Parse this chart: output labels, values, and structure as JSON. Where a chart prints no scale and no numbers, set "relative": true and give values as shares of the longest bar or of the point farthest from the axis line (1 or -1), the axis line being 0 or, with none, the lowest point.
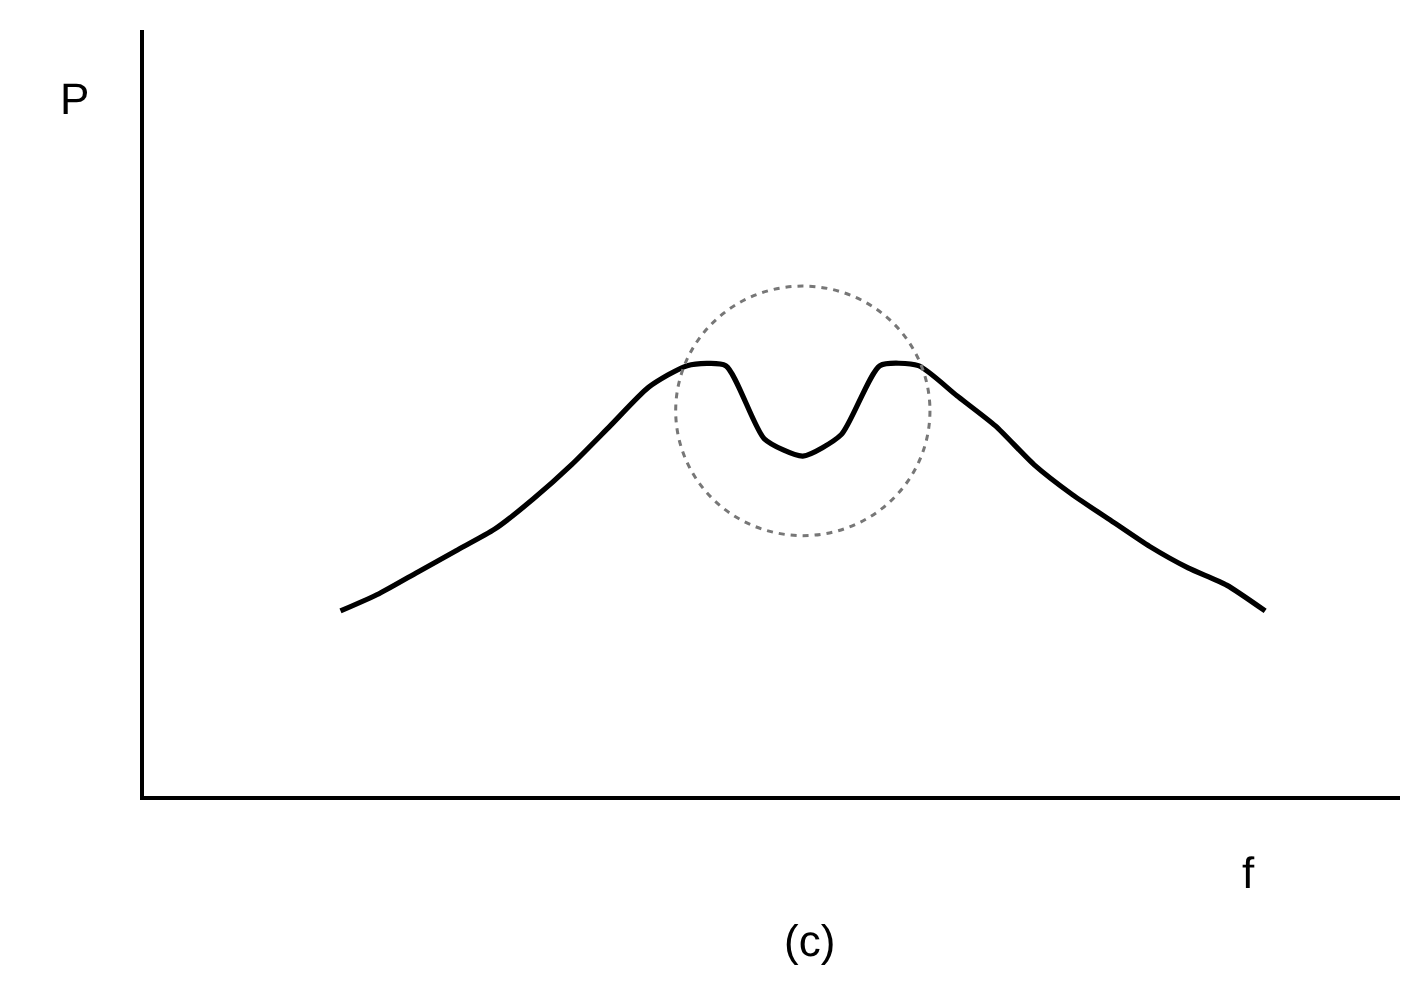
{
  "chart_data": {
    "type": "line",
    "relative": true,
    "xlabel": "f",
    "annotations": [
      "P",
      "(c)"
    ],
    "categories": [
      null,
      null,
      null,
      null,
      null,
      null,
      null,
      null,
      null,
      null,
      null,
      null,
      null,
      null,
      null,
      null,
      null,
      null,
      null,
      null,
      null,
      null,
      null,
      null,
      null
    ],
    "series": [
      {
        "color": "#000000",
        "values": [
          0.43,
          0.47,
          0.52,
          0.57,
          0.62,
          0.69,
          0.77,
          0.86,
          0.95,
          1.0,
          1.0,
          0.83,
          0.79,
          0.84,
          1.0,
          1.0,
          0.93,
          0.86,
          0.77,
          0.7,
          0.64,
          0.58,
          0.53,
          0.49,
          0.43
        ]
      }
    ],
    "marker": "none",
    "line_style": "solid"
  }
}
